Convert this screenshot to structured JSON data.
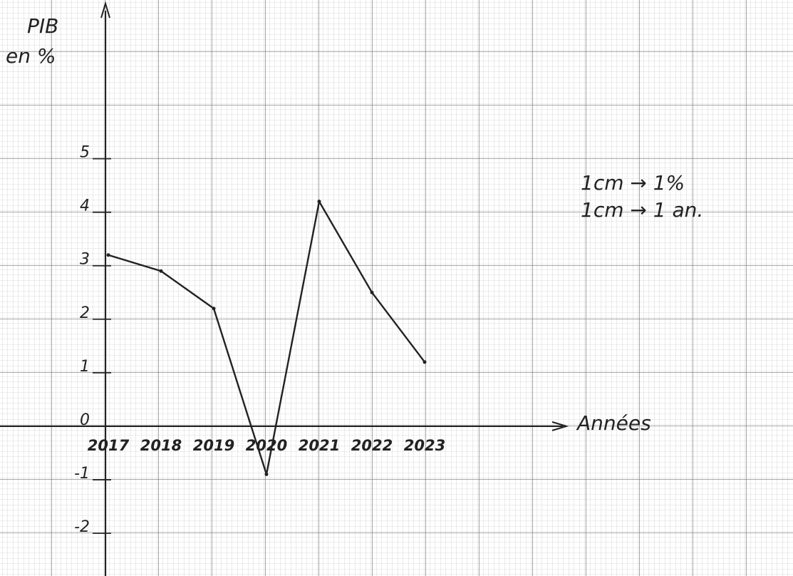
{
  "chart_data": {
    "type": "line",
    "y_label_top": "PIB",
    "y_label_bottom": "en %",
    "x_label": "Années",
    "annotations": [
      "1cm → 1%",
      "1cm → 1 an."
    ],
    "categories": [
      "2017",
      "2018",
      "2019",
      "2020",
      "2021",
      "2022",
      "2023"
    ],
    "series": [
      {
        "color": "#222222",
        "values": [
          3.2,
          2.9,
          2.2,
          -0.9,
          4.2,
          2.5,
          1.2
        ]
      }
    ],
    "ylim": [
      -2.8,
      7.9
    ],
    "yticks": [
      -2,
      -1,
      0,
      1,
      2,
      3,
      4,
      5
    ]
  }
}
